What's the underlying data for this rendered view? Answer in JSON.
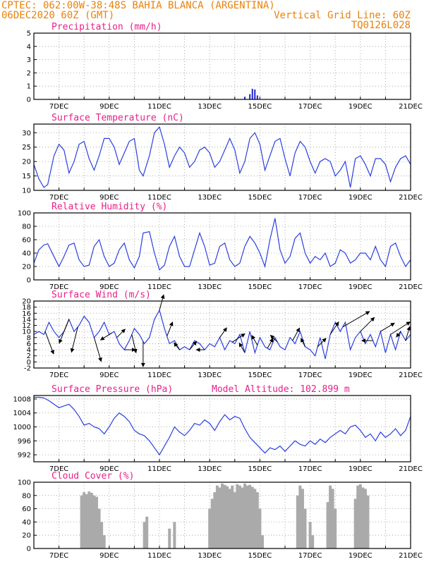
{
  "header": {
    "line1_left": "CPTEC:   062:00W-38:48S  BAHIA BLANCA (ARGENTINA)",
    "line2_left": "06DEC2020 60Z (GMT)",
    "line2_right": "Vertical Grid Line: 60Z",
    "line3_right": "TQ0126L028"
  },
  "chart_data": [
    {
      "type": "bar",
      "title": "Precipitation (mm/h)",
      "ylim": [
        0,
        5
      ],
      "yticks": [
        0,
        1,
        2,
        3,
        4,
        5
      ],
      "xticks": [
        "7DEC",
        "9DEC",
        "11DEC",
        "13DEC",
        "15DEC",
        "17DEC",
        "19DEC",
        "21DEC"
      ],
      "x": [
        14.4,
        14.6,
        14.7,
        14.8,
        14.9
      ],
      "values": [
        0.2,
        0.4,
        0.8,
        0.75,
        0.3
      ],
      "grid": true
    },
    {
      "type": "line",
      "title": "Surface Temperature (nC)",
      "ylim": [
        10,
        33
      ],
      "yticks": [
        10,
        15,
        20,
        25,
        30
      ],
      "xticks": [
        "7DEC",
        "9DEC",
        "11DEC",
        "13DEC",
        "15DEC",
        "17DEC",
        "19DEC",
        "21DEC"
      ],
      "x": [
        6.0,
        6.2,
        6.4,
        6.55,
        6.8,
        7.0,
        7.2,
        7.4,
        7.6,
        7.8,
        8.0,
        8.2,
        8.4,
        8.6,
        8.8,
        9.0,
        9.2,
        9.4,
        9.6,
        9.8,
        10.0,
        10.2,
        10.35,
        10.6,
        10.8,
        11.0,
        11.2,
        11.4,
        11.6,
        11.8,
        12.0,
        12.2,
        12.4,
        12.6,
        12.8,
        13.0,
        13.2,
        13.4,
        13.6,
        13.8,
        14.0,
        14.2,
        14.4,
        14.6,
        14.8,
        15.0,
        15.2,
        15.4,
        15.6,
        15.8,
        16.0,
        16.2,
        16.4,
        16.6,
        16.8,
        17.0,
        17.2,
        17.4,
        17.6,
        17.8,
        18.0,
        18.2,
        18.4,
        18.6,
        18.8,
        19.0,
        19.2,
        19.4,
        19.6,
        19.8,
        20.0,
        20.2,
        20.4,
        20.6,
        20.8,
        21.0
      ],
      "values": [
        19,
        14,
        11,
        12,
        22,
        26,
        24,
        16,
        20,
        26,
        27,
        21,
        17,
        22,
        28,
        28,
        25,
        19,
        23,
        27,
        28,
        17,
        15,
        22,
        30,
        32,
        26,
        18,
        22,
        25,
        23,
        18,
        20,
        24,
        25,
        23,
        18,
        20,
        24,
        28,
        24,
        16,
        20,
        28,
        30,
        26,
        17,
        22,
        27,
        28,
        21,
        15,
        23,
        27,
        25,
        20,
        16,
        20,
        21,
        20,
        15,
        17,
        20,
        11,
        21,
        22,
        19,
        15,
        21,
        21,
        19,
        13,
        18,
        21,
        22,
        19
      ],
      "grid": true
    },
    {
      "type": "line",
      "title": "Relative Humidity (%)",
      "ylim": [
        0,
        100
      ],
      "yticks": [
        0,
        20,
        40,
        60,
        80,
        100
      ],
      "xticks": [
        "7DEC",
        "9DEC",
        "11DEC",
        "13DEC",
        "15DEC",
        "17DEC",
        "19DEC",
        "21DEC"
      ],
      "x": [
        6.0,
        6.2,
        6.4,
        6.55,
        6.8,
        7.0,
        7.2,
        7.4,
        7.6,
        7.8,
        8.0,
        8.2,
        8.4,
        8.6,
        8.8,
        9.0,
        9.2,
        9.4,
        9.6,
        9.8,
        10.0,
        10.2,
        10.35,
        10.6,
        10.8,
        11.0,
        11.2,
        11.4,
        11.6,
        11.8,
        12.0,
        12.2,
        12.4,
        12.6,
        12.8,
        13.0,
        13.2,
        13.4,
        13.6,
        13.8,
        14.0,
        14.2,
        14.4,
        14.6,
        14.8,
        15.0,
        15.2,
        15.4,
        15.6,
        15.8,
        16.0,
        16.2,
        16.4,
        16.6,
        16.8,
        17.0,
        17.2,
        17.4,
        17.6,
        17.8,
        18.0,
        18.2,
        18.4,
        18.6,
        18.8,
        19.0,
        19.2,
        19.4,
        19.6,
        19.8,
        20.0,
        20.2,
        20.4,
        20.6,
        20.8,
        21.0
      ],
      "values": [
        25,
        45,
        52,
        54,
        35,
        20,
        35,
        52,
        55,
        30,
        20,
        22,
        50,
        60,
        35,
        20,
        25,
        45,
        55,
        30,
        18,
        35,
        70,
        72,
        40,
        15,
        22,
        50,
        65,
        35,
        20,
        20,
        45,
        70,
        50,
        22,
        25,
        50,
        55,
        30,
        20,
        25,
        50,
        65,
        55,
        40,
        20,
        60,
        92,
        45,
        25,
        35,
        62,
        70,
        40,
        25,
        35,
        30,
        40,
        20,
        25,
        45,
        40,
        25,
        30,
        40,
        40,
        30,
        50,
        30,
        20,
        50,
        55,
        35,
        20,
        30
      ],
      "grid": true
    },
    {
      "type": "line",
      "title": "Surface Wind (m/s)",
      "ylim": [
        -2,
        20
      ],
      "yticks": [
        -2,
        0,
        2,
        4,
        6,
        8,
        10,
        12,
        14,
        16,
        18,
        20
      ],
      "xticks": [
        "7DEC",
        "9DEC",
        "11DEC",
        "13DEC",
        "15DEC",
        "17DEC",
        "19DEC",
        "21DEC"
      ],
      "x": [
        6.0,
        6.2,
        6.4,
        6.6,
        6.8,
        7.0,
        7.2,
        7.4,
        7.6,
        7.8,
        8.0,
        8.2,
        8.4,
        8.6,
        8.8,
        9.0,
        9.2,
        9.4,
        9.6,
        9.8,
        10.0,
        10.2,
        10.4,
        10.6,
        10.8,
        11.0,
        11.2,
        11.4,
        11.6,
        11.8,
        12.0,
        12.2,
        12.4,
        12.6,
        12.8,
        13.0,
        13.2,
        13.4,
        13.6,
        13.8,
        14.0,
        14.2,
        14.4,
        14.6,
        14.8,
        15.0,
        15.2,
        15.4,
        15.6,
        15.8,
        16.0,
        16.2,
        16.4,
        16.6,
        16.8,
        17.0,
        17.2,
        17.4,
        17.6,
        17.8,
        18.0,
        18.2,
        18.4,
        18.6,
        18.8,
        19.0,
        19.2,
        19.4,
        19.6,
        19.8,
        20.0,
        20.2,
        20.4,
        20.6,
        20.8,
        21.0
      ],
      "values": [
        9,
        10,
        9,
        13,
        10,
        8,
        10,
        14,
        10,
        12,
        15,
        13,
        8,
        10,
        13,
        9,
        10,
        6,
        4,
        7,
        11,
        9,
        6,
        8,
        14,
        17,
        11,
        6,
        7,
        4,
        5,
        4,
        7,
        6,
        4,
        6,
        5,
        8,
        4,
        7,
        6,
        9,
        3,
        10,
        3,
        8,
        5,
        4,
        8,
        5,
        4,
        8,
        6,
        10,
        5,
        4,
        2,
        8,
        1,
        9,
        13,
        10,
        13,
        4,
        8,
        10,
        6,
        9,
        5,
        10,
        3,
        9,
        4,
        10,
        7,
        9
      ],
      "vectors": [
        {
          "x": 6.45,
          "u": 0.6,
          "v": -1.6
        },
        {
          "x": 7.4,
          "u": -0.7,
          "v": -1.7
        },
        {
          "x": 7.75,
          "u": -0.45,
          "v": -1.8
        },
        {
          "x": 8.4,
          "u": 0.5,
          "v": -1.7
        },
        {
          "x": 9.1,
          "u": -0.8,
          "v": -0.5
        },
        {
          "x": 9.3,
          "u": 0.6,
          "v": 0.6
        },
        {
          "x": 9.6,
          "u": 0.8,
          "v": 0.0
        },
        {
          "x": 9.9,
          "u": 0.3,
          "v": -1.3
        },
        {
          "x": 10.35,
          "u": 0.0,
          "v": -1.8
        },
        {
          "x": 11.0,
          "u": 0.3,
          "v": 1.1
        },
        {
          "x": 11.3,
          "u": 0.4,
          "v": 1.0
        },
        {
          "x": 11.8,
          "u": -0.4,
          "v": 0.5
        },
        {
          "x": 12.2,
          "u": 0.5,
          "v": 0.6
        },
        {
          "x": 12.8,
          "u": -0.6,
          "v": 0.0
        },
        {
          "x": 13.4,
          "u": 0.5,
          "v": 0.7
        },
        {
          "x": 13.9,
          "u": 0.9,
          "v": 0.6
        },
        {
          "x": 14.4,
          "u": -0.4,
          "v": 0.7
        },
        {
          "x": 14.9,
          "u": -0.4,
          "v": 0.7
        },
        {
          "x": 15.3,
          "u": 0.4,
          "v": 0.7
        },
        {
          "x": 15.7,
          "u": -0.5,
          "v": 0.5
        },
        {
          "x": 16.3,
          "u": 0.5,
          "v": 0.9
        },
        {
          "x": 16.8,
          "u": -0.3,
          "v": 0.6
        },
        {
          "x": 17.3,
          "u": 0.6,
          "v": 0.6
        },
        {
          "x": 17.8,
          "u": 0.6,
          "v": 0.9
        },
        {
          "x": 18.3,
          "u": 1.9,
          "v": 1.1
        },
        {
          "x": 19.0,
          "u": 1.0,
          "v": 1.0
        },
        {
          "x": 19.5,
          "u": -0.8,
          "v": 0.0
        },
        {
          "x": 19.8,
          "u": 1.0,
          "v": 0.6
        },
        {
          "x": 20.2,
          "u": 1.4,
          "v": 0.9
        },
        {
          "x": 20.6,
          "u": -0.3,
          "v": -0.4
        },
        {
          "x": 20.8,
          "u": 0.3,
          "v": 1.0
        }
      ],
      "grid": true
    },
    {
      "type": "line",
      "title": "Surface Pressure (hPa)",
      "annotation": "Model Altitude: 102.899 m",
      "ylim": [
        990,
        1009
      ],
      "yticks": [
        992,
        996,
        1000,
        1004,
        1008
      ],
      "xticks": [
        "7DEC",
        "9DEC",
        "11DEC",
        "13DEC",
        "15DEC",
        "17DEC",
        "19DEC",
        "21DEC"
      ],
      "x": [
        6.0,
        6.2,
        6.4,
        6.6,
        6.8,
        7.0,
        7.2,
        7.4,
        7.6,
        7.8,
        8.0,
        8.2,
        8.4,
        8.6,
        8.8,
        9.0,
        9.2,
        9.4,
        9.6,
        9.8,
        10.0,
        10.2,
        10.4,
        10.6,
        10.8,
        11.0,
        11.2,
        11.4,
        11.6,
        11.8,
        12.0,
        12.2,
        12.4,
        12.6,
        12.8,
        13.0,
        13.2,
        13.4,
        13.6,
        13.8,
        14.0,
        14.2,
        14.4,
        14.6,
        14.8,
        15.0,
        15.2,
        15.4,
        15.6,
        15.8,
        16.0,
        16.2,
        16.4,
        16.6,
        16.8,
        17.0,
        17.2,
        17.4,
        17.6,
        17.8,
        18.0,
        18.2,
        18.4,
        18.6,
        18.8,
        19.0,
        19.2,
        19.4,
        19.6,
        19.8,
        20.0,
        20.2,
        20.4,
        20.6,
        20.8,
        21.0
      ],
      "values": [
        1008.5,
        1008.5,
        1008.3,
        1007.5,
        1006.5,
        1005.5,
        1006.0,
        1006.5,
        1005.0,
        1003.0,
        1000.5,
        1001.0,
        1000.0,
        999.5,
        998.0,
        1000.0,
        1002.5,
        1004.0,
        1003.0,
        1001.5,
        999.0,
        998.0,
        997.5,
        996.0,
        994.0,
        992.0,
        994.5,
        997.0,
        1000.0,
        998.5,
        997.5,
        999.0,
        1001.0,
        1000.5,
        1002.0,
        1001.0,
        999.0,
        1001.5,
        1003.5,
        1002.0,
        1003.0,
        1002.5,
        999.5,
        997.0,
        995.5,
        994.0,
        992.5,
        994.0,
        993.5,
        994.5,
        993.0,
        994.5,
        996.0,
        995.0,
        994.5,
        996.0,
        995.0,
        996.5,
        995.5,
        997.0,
        998.0,
        999.0,
        998.0,
        1000.0,
        1000.5,
        999.0,
        997.0,
        998.0,
        996.0,
        998.5,
        997.0,
        998.0,
        999.5,
        997.5,
        999.0,
        1003.0
      ],
      "grid": true
    },
    {
      "type": "bar",
      "title": "Cloud Cover (%)",
      "ylim": [
        0,
        100
      ],
      "yticks": [
        0,
        20,
        40,
        60,
        80,
        100
      ],
      "xticks": [
        "7DEC",
        "9DEC",
        "11DEC",
        "13DEC",
        "15DEC",
        "17DEC",
        "19DEC",
        "21DEC"
      ],
      "x": [
        7.9,
        8.0,
        8.1,
        8.2,
        8.3,
        8.4,
        8.5,
        8.6,
        8.7,
        8.8,
        10.4,
        10.5,
        11.4,
        11.6,
        13.0,
        13.1,
        13.2,
        13.3,
        13.4,
        13.5,
        13.6,
        13.7,
        13.8,
        13.9,
        14.0,
        14.1,
        14.2,
        14.3,
        14.4,
        14.5,
        14.6,
        14.7,
        14.8,
        14.9,
        15.0,
        15.1,
        16.5,
        16.6,
        16.7,
        16.8,
        17.0,
        17.1,
        17.7,
        17.8,
        17.9,
        18.0,
        18.8,
        18.9,
        19.0,
        19.1,
        19.2,
        19.3
      ],
      "values": [
        80,
        85,
        82,
        86,
        84,
        80,
        78,
        60,
        40,
        20,
        40,
        48,
        30,
        40,
        60,
        75,
        85,
        95,
        92,
        98,
        96,
        94,
        90,
        95,
        85,
        97,
        95,
        92,
        98,
        95,
        96,
        93,
        90,
        85,
        60,
        20,
        80,
        95,
        90,
        60,
        40,
        20,
        70,
        95,
        90,
        60,
        75,
        95,
        97,
        92,
        90,
        80
      ],
      "grid": true
    }
  ]
}
